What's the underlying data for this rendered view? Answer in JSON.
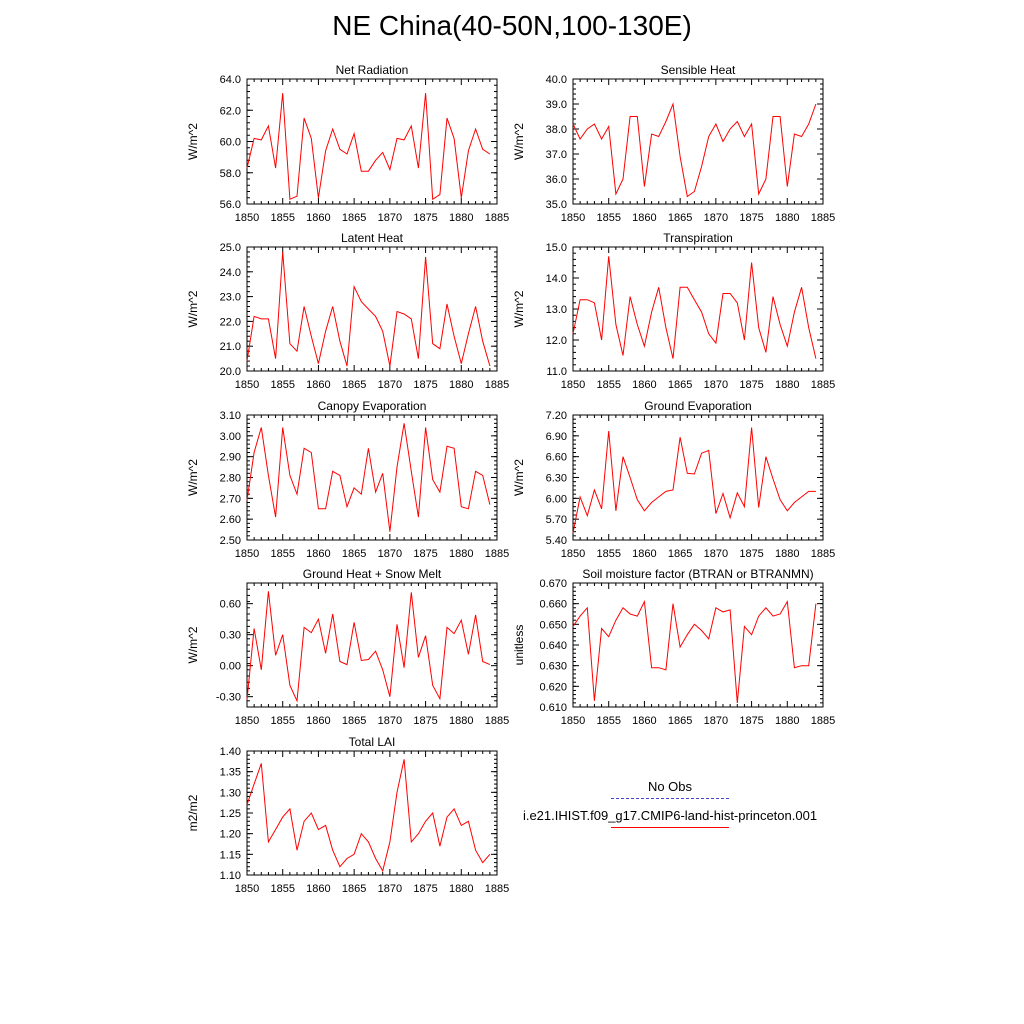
{
  "title": "NE China(40-50N,100-130E)",
  "series_color": "#ff0000",
  "obs_color": "#3b3bb8",
  "legend": {
    "obs_label": "No Obs",
    "model_label": "i.e21.IHIST.f09_g17.CMIP6-land-hist-princeton.001"
  },
  "chart_data": [
    {
      "type": "line",
      "title": "Net Radiation",
      "ylabel": "W/m^2",
      "xlabel": "",
      "x": [
        1850,
        1851,
        1852,
        1853,
        1854,
        1855,
        1856,
        1857,
        1858,
        1859,
        1860,
        1861,
        1862,
        1863,
        1864,
        1865,
        1866,
        1867,
        1868,
        1869,
        1870,
        1871,
        1872,
        1873,
        1874,
        1875,
        1876,
        1877,
        1878,
        1879,
        1880,
        1881,
        1882,
        1883,
        1884
      ],
      "xlim": [
        1850,
        1885
      ],
      "xticks": [
        "1850",
        "1855",
        "1860",
        "1865",
        "1870",
        "1875",
        "1880",
        "1885"
      ],
      "ylim": [
        56.0,
        64.0
      ],
      "yticks": [
        "56.0",
        "58.0",
        "60.0",
        "62.0",
        "64.0"
      ],
      "series": [
        {
          "values": [
            58.3,
            60.2,
            60.1,
            61.0,
            58.3,
            63.1,
            56.3,
            56.5,
            61.5,
            60.2,
            56.4,
            59.4,
            60.8,
            59.5,
            59.2,
            60.5,
            58.1,
            58.1,
            58.8,
            59.3,
            58.2,
            60.2,
            60.1,
            61.0,
            58.3,
            63.1,
            56.3,
            56.6,
            61.5,
            60.2,
            56.4,
            59.4,
            60.8,
            59.5,
            59.2
          ]
        }
      ]
    },
    {
      "type": "line",
      "title": "Sensible Heat",
      "ylabel": "W/m^2",
      "xlabel": "",
      "x": [
        1850,
        1851,
        1852,
        1853,
        1854,
        1855,
        1856,
        1857,
        1858,
        1859,
        1860,
        1861,
        1862,
        1863,
        1864,
        1865,
        1866,
        1867,
        1868,
        1869,
        1870,
        1871,
        1872,
        1873,
        1874,
        1875,
        1876,
        1877,
        1878,
        1879,
        1880,
        1881,
        1882,
        1883,
        1884
      ],
      "xlim": [
        1850,
        1885
      ],
      "xticks": [
        "1850",
        "1855",
        "1860",
        "1865",
        "1870",
        "1875",
        "1880",
        "1885"
      ],
      "ylim": [
        35.0,
        40.0
      ],
      "yticks": [
        "35.0",
        "36.0",
        "37.0",
        "38.0",
        "39.0",
        "40.0"
      ],
      "series": [
        {
          "values": [
            38.2,
            37.6,
            38.0,
            38.2,
            37.6,
            38.1,
            35.4,
            36.0,
            38.5,
            38.5,
            35.7,
            37.8,
            37.7,
            38.3,
            39.0,
            36.9,
            35.3,
            35.5,
            36.5,
            37.7,
            38.2,
            37.5,
            38.0,
            38.3,
            37.7,
            38.2,
            35.4,
            36.0,
            38.5,
            38.5,
            35.7,
            37.8,
            37.7,
            38.2,
            39.0
          ]
        }
      ]
    },
    {
      "type": "line",
      "title": "Latent Heat",
      "ylabel": "W/m^2",
      "xlabel": "",
      "x": [
        1850,
        1851,
        1852,
        1853,
        1854,
        1855,
        1856,
        1857,
        1858,
        1859,
        1860,
        1861,
        1862,
        1863,
        1864,
        1865,
        1866,
        1867,
        1868,
        1869,
        1870,
        1871,
        1872,
        1873,
        1874,
        1875,
        1876,
        1877,
        1878,
        1879,
        1880,
        1881,
        1882,
        1883,
        1884
      ],
      "xlim": [
        1850,
        1885
      ],
      "xticks": [
        "1850",
        "1855",
        "1860",
        "1865",
        "1870",
        "1875",
        "1880",
        "1885"
      ],
      "ylim": [
        20.0,
        25.0
      ],
      "yticks": [
        "20.0",
        "21.0",
        "22.0",
        "23.0",
        "24.0",
        "25.0"
      ],
      "series": [
        {
          "values": [
            20.4,
            22.2,
            22.1,
            22.1,
            20.5,
            24.8,
            21.1,
            20.8,
            22.6,
            21.4,
            20.3,
            21.6,
            22.6,
            21.2,
            20.2,
            23.4,
            22.8,
            22.5,
            22.2,
            21.6,
            20.2,
            22.4,
            22.3,
            22.1,
            20.5,
            24.6,
            21.1,
            20.9,
            22.7,
            21.4,
            20.3,
            21.5,
            22.6,
            21.2,
            20.2
          ]
        }
      ]
    },
    {
      "type": "line",
      "title": "Transpiration",
      "ylabel": "W/m^2",
      "xlabel": "",
      "x": [
        1850,
        1851,
        1852,
        1853,
        1854,
        1855,
        1856,
        1857,
        1858,
        1859,
        1860,
        1861,
        1862,
        1863,
        1864,
        1865,
        1866,
        1867,
        1868,
        1869,
        1870,
        1871,
        1872,
        1873,
        1874,
        1875,
        1876,
        1877,
        1878,
        1879,
        1880,
        1881,
        1882,
        1883,
        1884
      ],
      "xlim": [
        1850,
        1885
      ],
      "xticks": [
        "1850",
        "1855",
        "1860",
        "1865",
        "1870",
        "1875",
        "1880",
        "1885"
      ],
      "ylim": [
        11.0,
        15.0
      ],
      "yticks": [
        "11.0",
        "12.0",
        "13.0",
        "14.0",
        "15.0"
      ],
      "series": [
        {
          "values": [
            12.2,
            13.3,
            13.3,
            13.2,
            12.0,
            14.7,
            12.5,
            11.5,
            13.4,
            12.5,
            11.8,
            12.9,
            13.7,
            12.4,
            11.4,
            13.7,
            13.7,
            13.3,
            12.9,
            12.2,
            11.9,
            13.5,
            13.5,
            13.2,
            12.0,
            14.5,
            12.4,
            11.6,
            13.4,
            12.5,
            11.8,
            12.9,
            13.7,
            12.4,
            11.4
          ]
        }
      ]
    },
    {
      "type": "line",
      "title": "Canopy Evaporation",
      "ylabel": "W/m^2",
      "xlabel": "",
      "x": [
        1850,
        1851,
        1852,
        1853,
        1854,
        1855,
        1856,
        1857,
        1858,
        1859,
        1860,
        1861,
        1862,
        1863,
        1864,
        1865,
        1866,
        1867,
        1868,
        1869,
        1870,
        1871,
        1872,
        1873,
        1874,
        1875,
        1876,
        1877,
        1878,
        1879,
        1880,
        1881,
        1882,
        1883,
        1884
      ],
      "xlim": [
        1850,
        1885
      ],
      "xticks": [
        "1850",
        "1855",
        "1860",
        "1865",
        "1870",
        "1875",
        "1880",
        "1885"
      ],
      "ylim": [
        2.5,
        3.1
      ],
      "yticks": [
        "2.50",
        "2.60",
        "2.70",
        "2.80",
        "2.90",
        "3.00",
        "3.10"
      ],
      "series": [
        {
          "values": [
            2.69,
            2.92,
            3.04,
            2.81,
            2.61,
            3.04,
            2.81,
            2.72,
            2.94,
            2.92,
            2.65,
            2.65,
            2.83,
            2.81,
            2.66,
            2.75,
            2.72,
            2.94,
            2.73,
            2.82,
            2.54,
            2.85,
            3.06,
            2.83,
            2.61,
            3.04,
            2.79,
            2.73,
            2.95,
            2.94,
            2.66,
            2.65,
            2.83,
            2.81,
            2.67
          ]
        }
      ]
    },
    {
      "type": "line",
      "title": "Ground Evaporation",
      "ylabel": "W/m^2",
      "xlabel": "",
      "x": [
        1850,
        1851,
        1852,
        1853,
        1854,
        1855,
        1856,
        1857,
        1858,
        1859,
        1860,
        1861,
        1862,
        1863,
        1864,
        1865,
        1866,
        1867,
        1868,
        1869,
        1870,
        1871,
        1872,
        1873,
        1874,
        1875,
        1876,
        1877,
        1878,
        1879,
        1880,
        1881,
        1882,
        1883,
        1884
      ],
      "xlim": [
        1850,
        1885
      ],
      "xticks": [
        "1850",
        "1855",
        "1860",
        "1865",
        "1870",
        "1875",
        "1880",
        "1885"
      ],
      "ylim": [
        5.4,
        7.2
      ],
      "yticks": [
        "5.40",
        "5.70",
        "6.00",
        "6.30",
        "6.60",
        "6.90",
        "7.20"
      ],
      "series": [
        {
          "values": [
            5.5,
            6.02,
            5.75,
            6.12,
            5.85,
            6.97,
            5.82,
            6.6,
            6.3,
            5.98,
            5.82,
            5.94,
            6.02,
            6.1,
            6.12,
            6.88,
            6.36,
            6.35,
            6.65,
            6.69,
            5.78,
            6.07,
            5.72,
            6.08,
            5.88,
            7.02,
            5.87,
            6.6,
            6.28,
            5.98,
            5.82,
            5.94,
            6.02,
            6.1,
            6.1
          ]
        }
      ]
    },
    {
      "type": "line",
      "title": "Ground Heat + Snow Melt",
      "ylabel": "W/m^2",
      "xlabel": "",
      "x": [
        1850,
        1851,
        1852,
        1853,
        1854,
        1855,
        1856,
        1857,
        1858,
        1859,
        1860,
        1861,
        1862,
        1863,
        1864,
        1865,
        1866,
        1867,
        1868,
        1869,
        1870,
        1871,
        1872,
        1873,
        1874,
        1875,
        1876,
        1877,
        1878,
        1879,
        1880,
        1881,
        1882,
        1883,
        1884
      ],
      "xlim": [
        1850,
        1885
      ],
      "xticks": [
        "1850",
        "1855",
        "1860",
        "1865",
        "1870",
        "1875",
        "1880",
        "1885"
      ],
      "ylim": [
        -0.4,
        0.8
      ],
      "yticks": [
        "-0.30",
        "0.00",
        "0.30",
        "0.60"
      ],
      "series": [
        {
          "values": [
            -0.33,
            0.36,
            -0.04,
            0.72,
            0.1,
            0.3,
            -0.19,
            -0.34,
            0.37,
            0.32,
            0.45,
            0.12,
            0.5,
            0.04,
            0.01,
            0.42,
            0.05,
            0.06,
            0.14,
            -0.04,
            -0.3,
            0.4,
            -0.02,
            0.71,
            0.08,
            0.29,
            -0.19,
            -0.32,
            0.37,
            0.31,
            0.44,
            0.11,
            0.49,
            0.04,
            0.01
          ]
        }
      ]
    },
    {
      "type": "line",
      "title": "Soil moisture factor (BTRAN or BTRANMN)",
      "ylabel": "unitless",
      "xlabel": "",
      "x": [
        1850,
        1851,
        1852,
        1853,
        1854,
        1855,
        1856,
        1857,
        1858,
        1859,
        1860,
        1861,
        1862,
        1863,
        1864,
        1865,
        1866,
        1867,
        1868,
        1869,
        1870,
        1871,
        1872,
        1873,
        1874,
        1875,
        1876,
        1877,
        1878,
        1879,
        1880,
        1881,
        1882,
        1883,
        1884
      ],
      "xlim": [
        1850,
        1885
      ],
      "xticks": [
        "1850",
        "1855",
        "1860",
        "1865",
        "1870",
        "1875",
        "1880",
        "1885"
      ],
      "ylim": [
        0.61,
        0.67
      ],
      "yticks": [
        "0.610",
        "0.620",
        "0.630",
        "0.640",
        "0.650",
        "0.660",
        "0.670"
      ],
      "series": [
        {
          "values": [
            0.649,
            0.654,
            0.658,
            0.613,
            0.648,
            0.644,
            0.652,
            0.658,
            0.655,
            0.654,
            0.661,
            0.629,
            0.629,
            0.628,
            0.66,
            0.639,
            0.645,
            0.65,
            0.647,
            0.643,
            0.658,
            0.656,
            0.657,
            0.612,
            0.649,
            0.645,
            0.654,
            0.658,
            0.654,
            0.655,
            0.661,
            0.629,
            0.63,
            0.63,
            0.66
          ]
        }
      ]
    },
    {
      "type": "line",
      "title": "Total LAI",
      "ylabel": "m2/m2",
      "xlabel": "",
      "x": [
        1850,
        1851,
        1852,
        1853,
        1854,
        1855,
        1856,
        1857,
        1858,
        1859,
        1860,
        1861,
        1862,
        1863,
        1864,
        1865,
        1866,
        1867,
        1868,
        1869,
        1870,
        1871,
        1872,
        1873,
        1874,
        1875,
        1876,
        1877,
        1878,
        1879,
        1880,
        1881,
        1882,
        1883,
        1884
      ],
      "xlim": [
        1850,
        1885
      ],
      "xticks": [
        "1850",
        "1855",
        "1860",
        "1865",
        "1870",
        "1875",
        "1880",
        "1885"
      ],
      "ylim": [
        1.1,
        1.4
      ],
      "yticks": [
        "1.10",
        "1.15",
        "1.20",
        "1.25",
        "1.30",
        "1.35",
        "1.40"
      ],
      "series": [
        {
          "values": [
            1.27,
            1.32,
            1.37,
            1.18,
            1.21,
            1.24,
            1.26,
            1.16,
            1.23,
            1.25,
            1.21,
            1.22,
            1.16,
            1.12,
            1.14,
            1.15,
            1.2,
            1.18,
            1.14,
            1.11,
            1.18,
            1.3,
            1.38,
            1.18,
            1.2,
            1.23,
            1.25,
            1.17,
            1.24,
            1.26,
            1.22,
            1.23,
            1.16,
            1.13,
            1.15
          ]
        }
      ]
    }
  ]
}
